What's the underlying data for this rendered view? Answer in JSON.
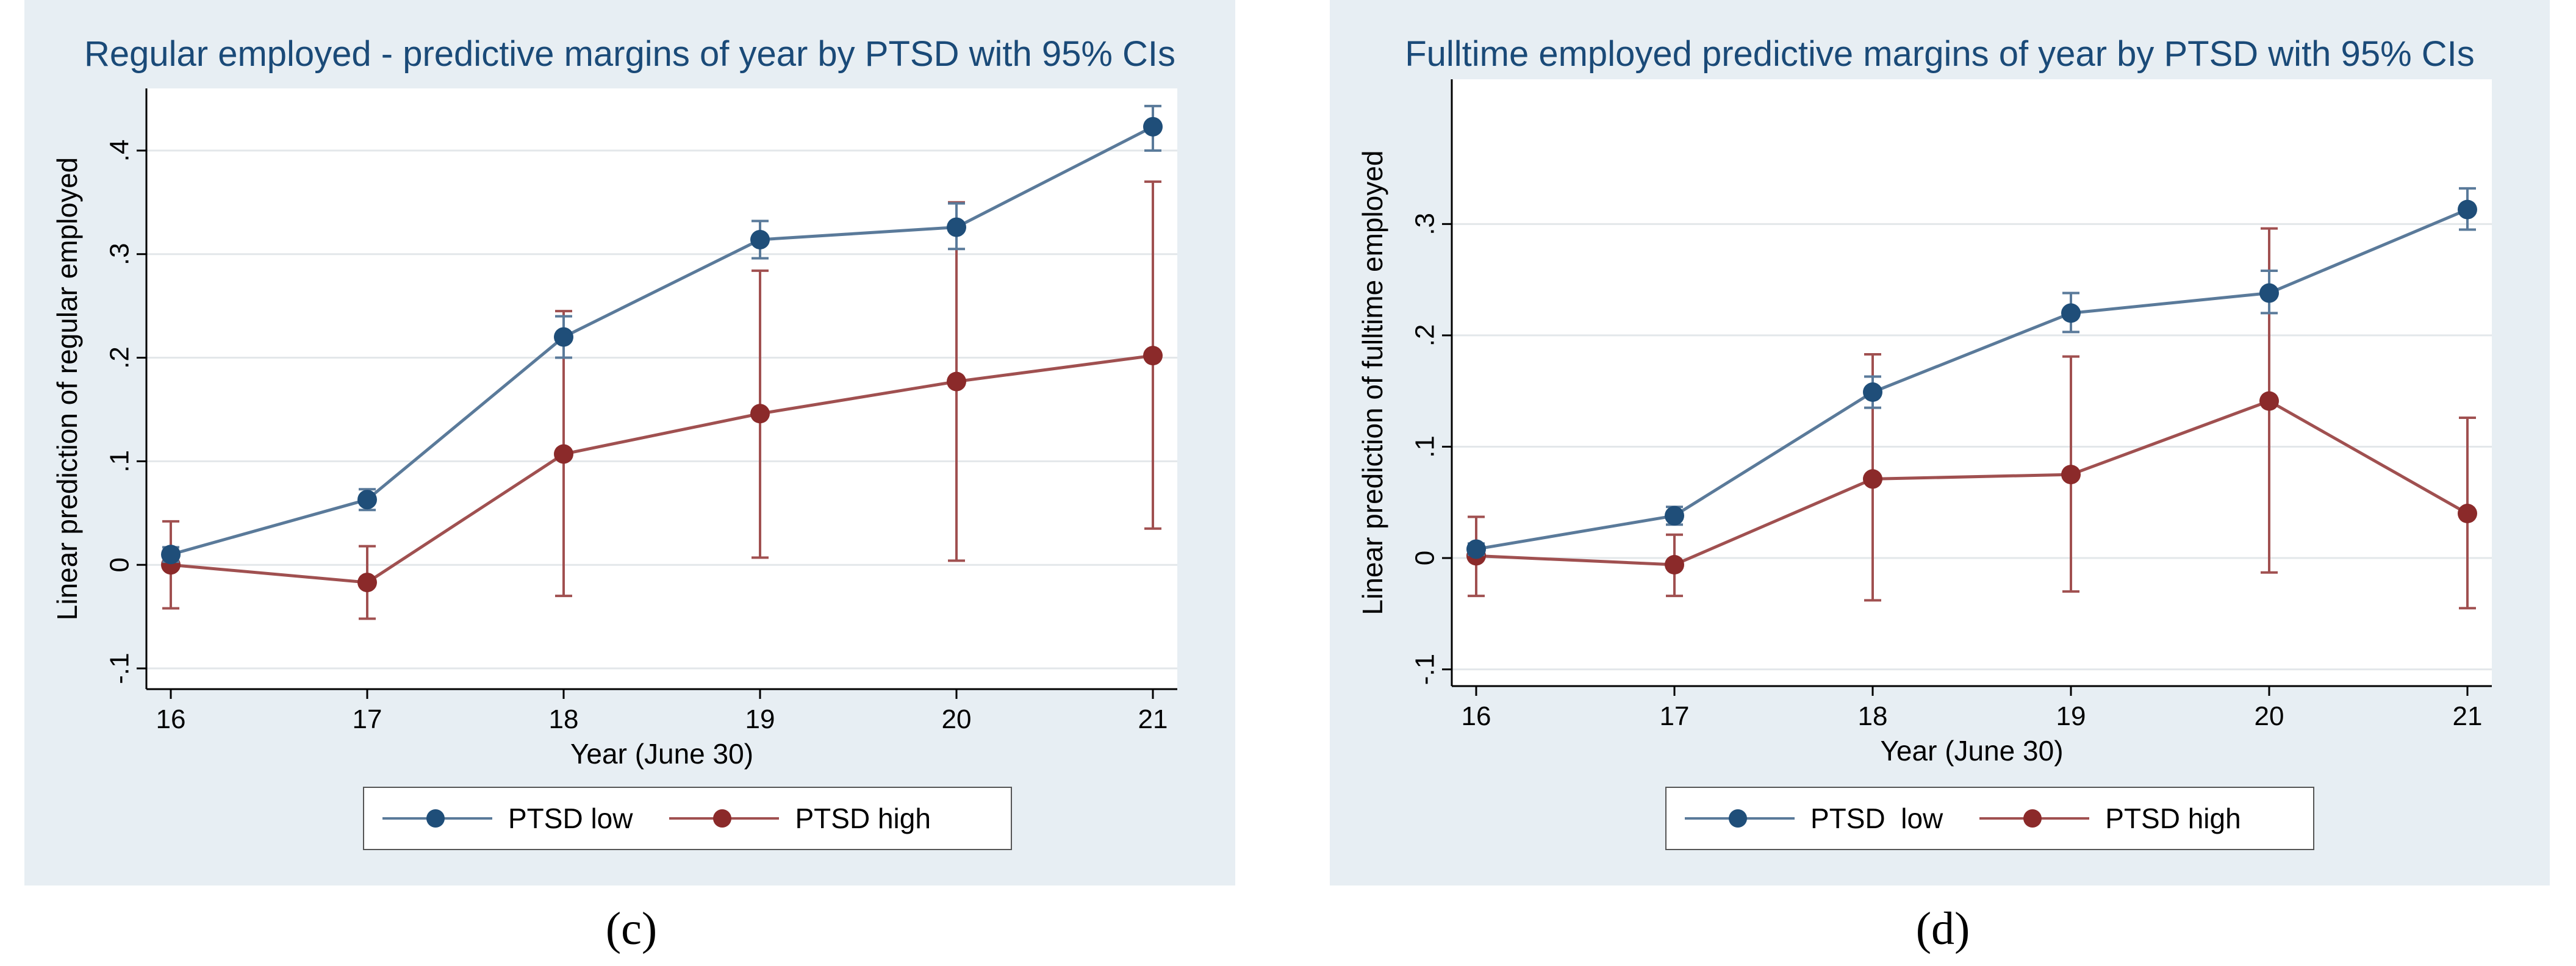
{
  "panels": [
    {
      "title": "Regular employed - predictive margins of year by PTSD with 95% CIs",
      "caption": "(c)",
      "legend": [
        "PTSD low",
        "PTSD high"
      ]
    },
    {
      "title": "Fulltime employed predictive margins of year by PTSD with 95% CIs",
      "caption": "(d)",
      "legend": [
        "PTSD  low",
        "PTSD high"
      ]
    }
  ],
  "colors": {
    "low": "#1f4e79",
    "low_line": "#5a7a9a",
    "high": "#8b2a2a",
    "high_line": "#a05050",
    "title": "#1a4a78",
    "panel_bg": "#e7eef3",
    "plot_bg": "#ffffff",
    "grid": "#e3e7ea"
  },
  "chart_data": [
    {
      "type": "line",
      "title": "Regular employed - predictive margins of year by PTSD with 95% CIs",
      "xlabel": "Year (June 30)",
      "ylabel": "Linear prediction of regular employed",
      "categories": [
        "16",
        "17",
        "18",
        "19",
        "20",
        "21"
      ],
      "yticks": [
        -0.1,
        0,
        0.1,
        0.2,
        0.3,
        0.4
      ],
      "yticklabels": [
        "-.1",
        "0",
        ".1",
        ".2",
        ".3",
        ".4"
      ],
      "ylim": [
        -0.12,
        0.46
      ],
      "grid": true,
      "legend_position": "bottom",
      "series": [
        {
          "name": "PTSD low",
          "values": [
            0.01,
            0.063,
            0.22,
            0.314,
            0.326,
            0.423
          ],
          "ci_low": [
            0.003,
            0.053,
            0.2,
            0.296,
            0.305,
            0.4
          ],
          "ci_high": [
            0.017,
            0.073,
            0.24,
            0.332,
            0.349,
            0.443
          ]
        },
        {
          "name": "PTSD high",
          "values": [
            0.0,
            -0.017,
            0.107,
            0.146,
            0.177,
            0.202
          ],
          "ci_low": [
            -0.042,
            -0.052,
            -0.03,
            0.007,
            0.004,
            0.035
          ],
          "ci_high": [
            0.042,
            0.018,
            0.245,
            0.284,
            0.35,
            0.37
          ]
        }
      ]
    },
    {
      "type": "line",
      "title": "Fulltime employed predictive margins of year by PTSD with 95% CIs",
      "xlabel": "Year (June 30)",
      "ylabel": "Linear prediction of fulltime employed",
      "categories": [
        "16",
        "17",
        "18",
        "19",
        "20",
        "21"
      ],
      "yticks": [
        -0.1,
        0,
        0.1,
        0.2,
        0.3
      ],
      "yticklabels": [
        "-.1",
        "0",
        ".1",
        ".2",
        ".3"
      ],
      "ylim": [
        -0.115,
        0.43
      ],
      "grid": true,
      "legend_position": "bottom",
      "series": [
        {
          "name": "PTSD  low",
          "values": [
            0.008,
            0.038,
            0.149,
            0.22,
            0.238,
            0.313
          ],
          "ci_low": [
            0.003,
            0.03,
            0.135,
            0.203,
            0.22,
            0.295
          ],
          "ci_high": [
            0.013,
            0.046,
            0.163,
            0.238,
            0.258,
            0.332
          ]
        },
        {
          "name": "PTSD high",
          "values": [
            0.002,
            -0.006,
            0.071,
            0.075,
            0.141,
            0.04
          ],
          "ci_low": [
            -0.034,
            -0.034,
            -0.038,
            -0.03,
            -0.013,
            -0.045
          ],
          "ci_high": [
            0.037,
            0.021,
            0.183,
            0.181,
            0.296,
            0.126
          ]
        }
      ]
    }
  ]
}
